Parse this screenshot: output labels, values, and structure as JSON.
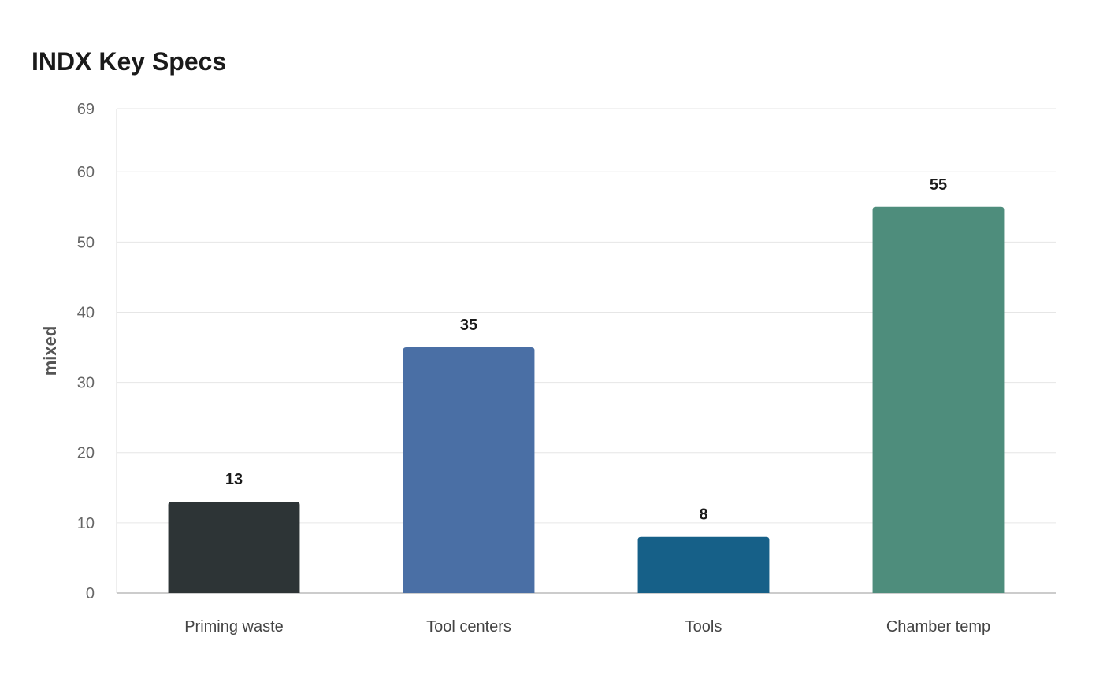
{
  "chart_data": {
    "type": "bar",
    "title": "INDX Key Specs",
    "xlabel": "",
    "ylabel": "mixed",
    "categories": [
      "Priming waste",
      "Tool centers",
      "Tools",
      "Chamber temp"
    ],
    "values": [
      13,
      35,
      8,
      55
    ],
    "colors": [
      "#2d3436",
      "#4a6fa5",
      "#166088",
      "#4e8d7c"
    ],
    "ylim": [
      0,
      69
    ],
    "yticks": [
      0,
      10,
      20,
      30,
      40,
      50,
      60,
      69
    ],
    "grid": true,
    "legend": "none"
  }
}
